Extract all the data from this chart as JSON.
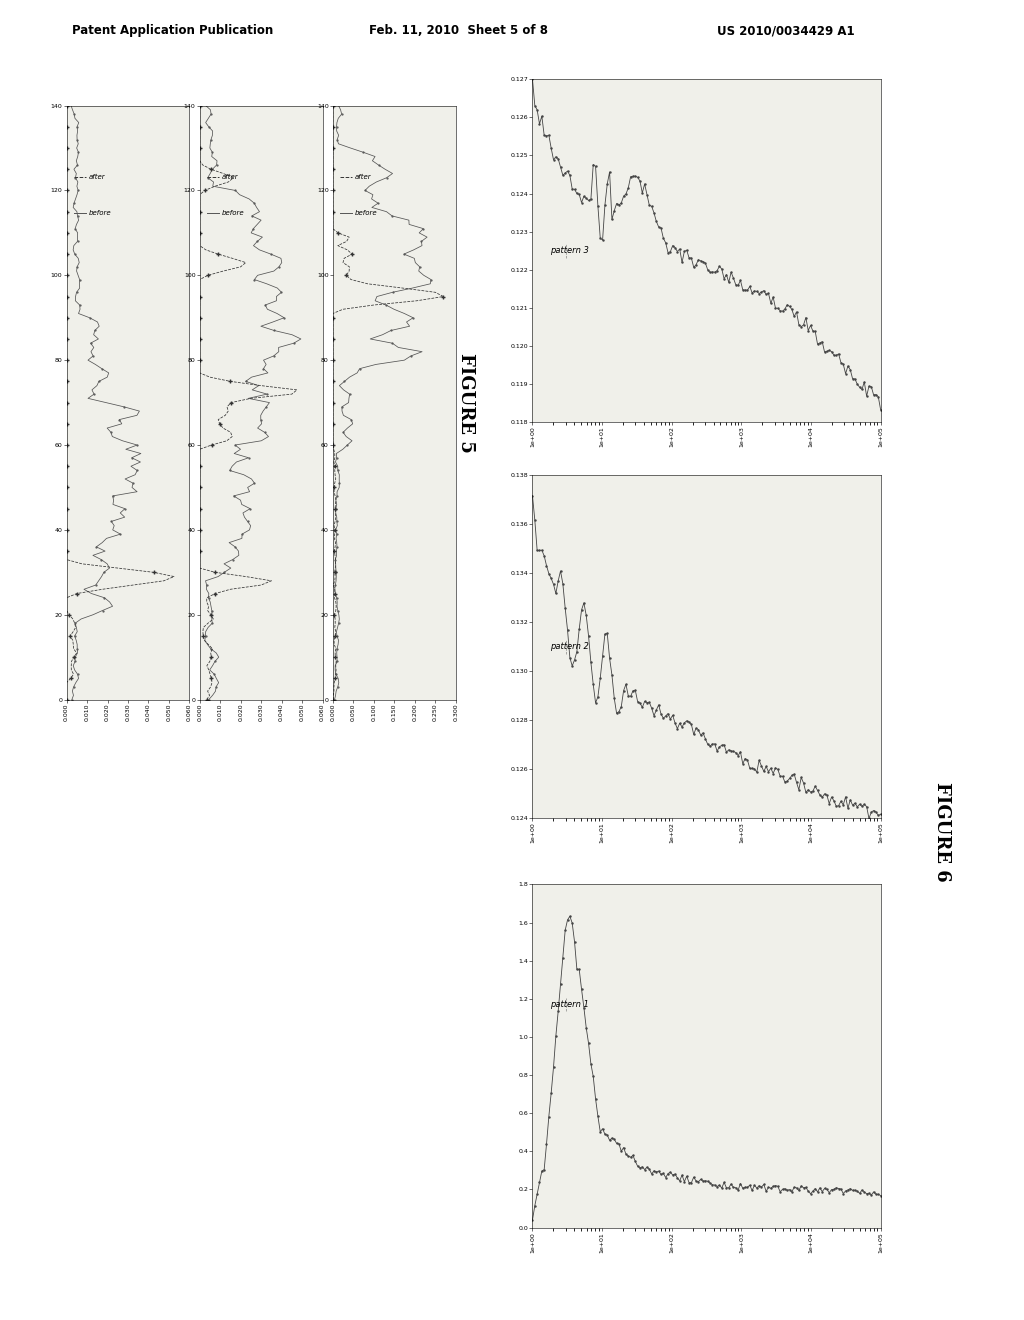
{
  "page_title_left": "Patent Application Publication",
  "page_title_center": "Feb. 11, 2010  Sheet 5 of 8",
  "page_title_right": "US 2010/0034429 A1",
  "figure5_label": "FIGURE 5",
  "figure6_label": "FIGURE 6",
  "fig5_plots": [
    {
      "ylim": [
        0.0,
        0.06
      ],
      "yticks": [
        0.0,
        0.01,
        0.02,
        0.03,
        0.04,
        0.05,
        0.06
      ],
      "xlim": [
        0,
        140
      ],
      "xticks": [
        0,
        20,
        40,
        60,
        80,
        100,
        120,
        140
      ]
    },
    {
      "ylim": [
        0.0,
        0.06
      ],
      "yticks": [
        0.0,
        0.01,
        0.02,
        0.03,
        0.04,
        0.05,
        0.06
      ],
      "xlim": [
        0,
        140
      ],
      "xticks": [
        0,
        20,
        40,
        60,
        80,
        100,
        120,
        140
      ]
    },
    {
      "ylim": [
        0.0,
        0.3
      ],
      "yticks": [
        0.0,
        0.05,
        0.1,
        0.15,
        0.2,
        0.25,
        0.3
      ],
      "xlim": [
        0,
        140
      ],
      "xticks": [
        0,
        20,
        40,
        60,
        80,
        100,
        120,
        140
      ]
    }
  ],
  "fig6_plots": [
    {
      "label": "pattern 1",
      "ylim": [
        0.0,
        1.8
      ],
      "yticks": [
        0.0,
        0.2,
        0.4,
        0.6,
        0.8,
        1.0,
        1.2,
        1.4,
        1.6,
        1.8
      ],
      "xlim_log": [
        1.0,
        100000.0
      ]
    },
    {
      "label": "pattern 2",
      "ylim": [
        0.124,
        0.138
      ],
      "yticks": [
        0.124,
        0.126,
        0.128,
        0.13,
        0.132,
        0.134,
        0.136,
        0.138
      ],
      "xlim_log": [
        1.0,
        100000.0
      ]
    },
    {
      "label": "pattern 3",
      "ylim": [
        0.118,
        0.127
      ],
      "yticks": [
        0.118,
        0.119,
        0.12,
        0.121,
        0.122,
        0.123,
        0.124,
        0.125,
        0.126,
        0.127
      ],
      "xlim_log": [
        1.0,
        100000.0
      ]
    }
  ],
  "bg_color": "#f0f0ea",
  "line_color": "#444444",
  "text_color": "#333333"
}
